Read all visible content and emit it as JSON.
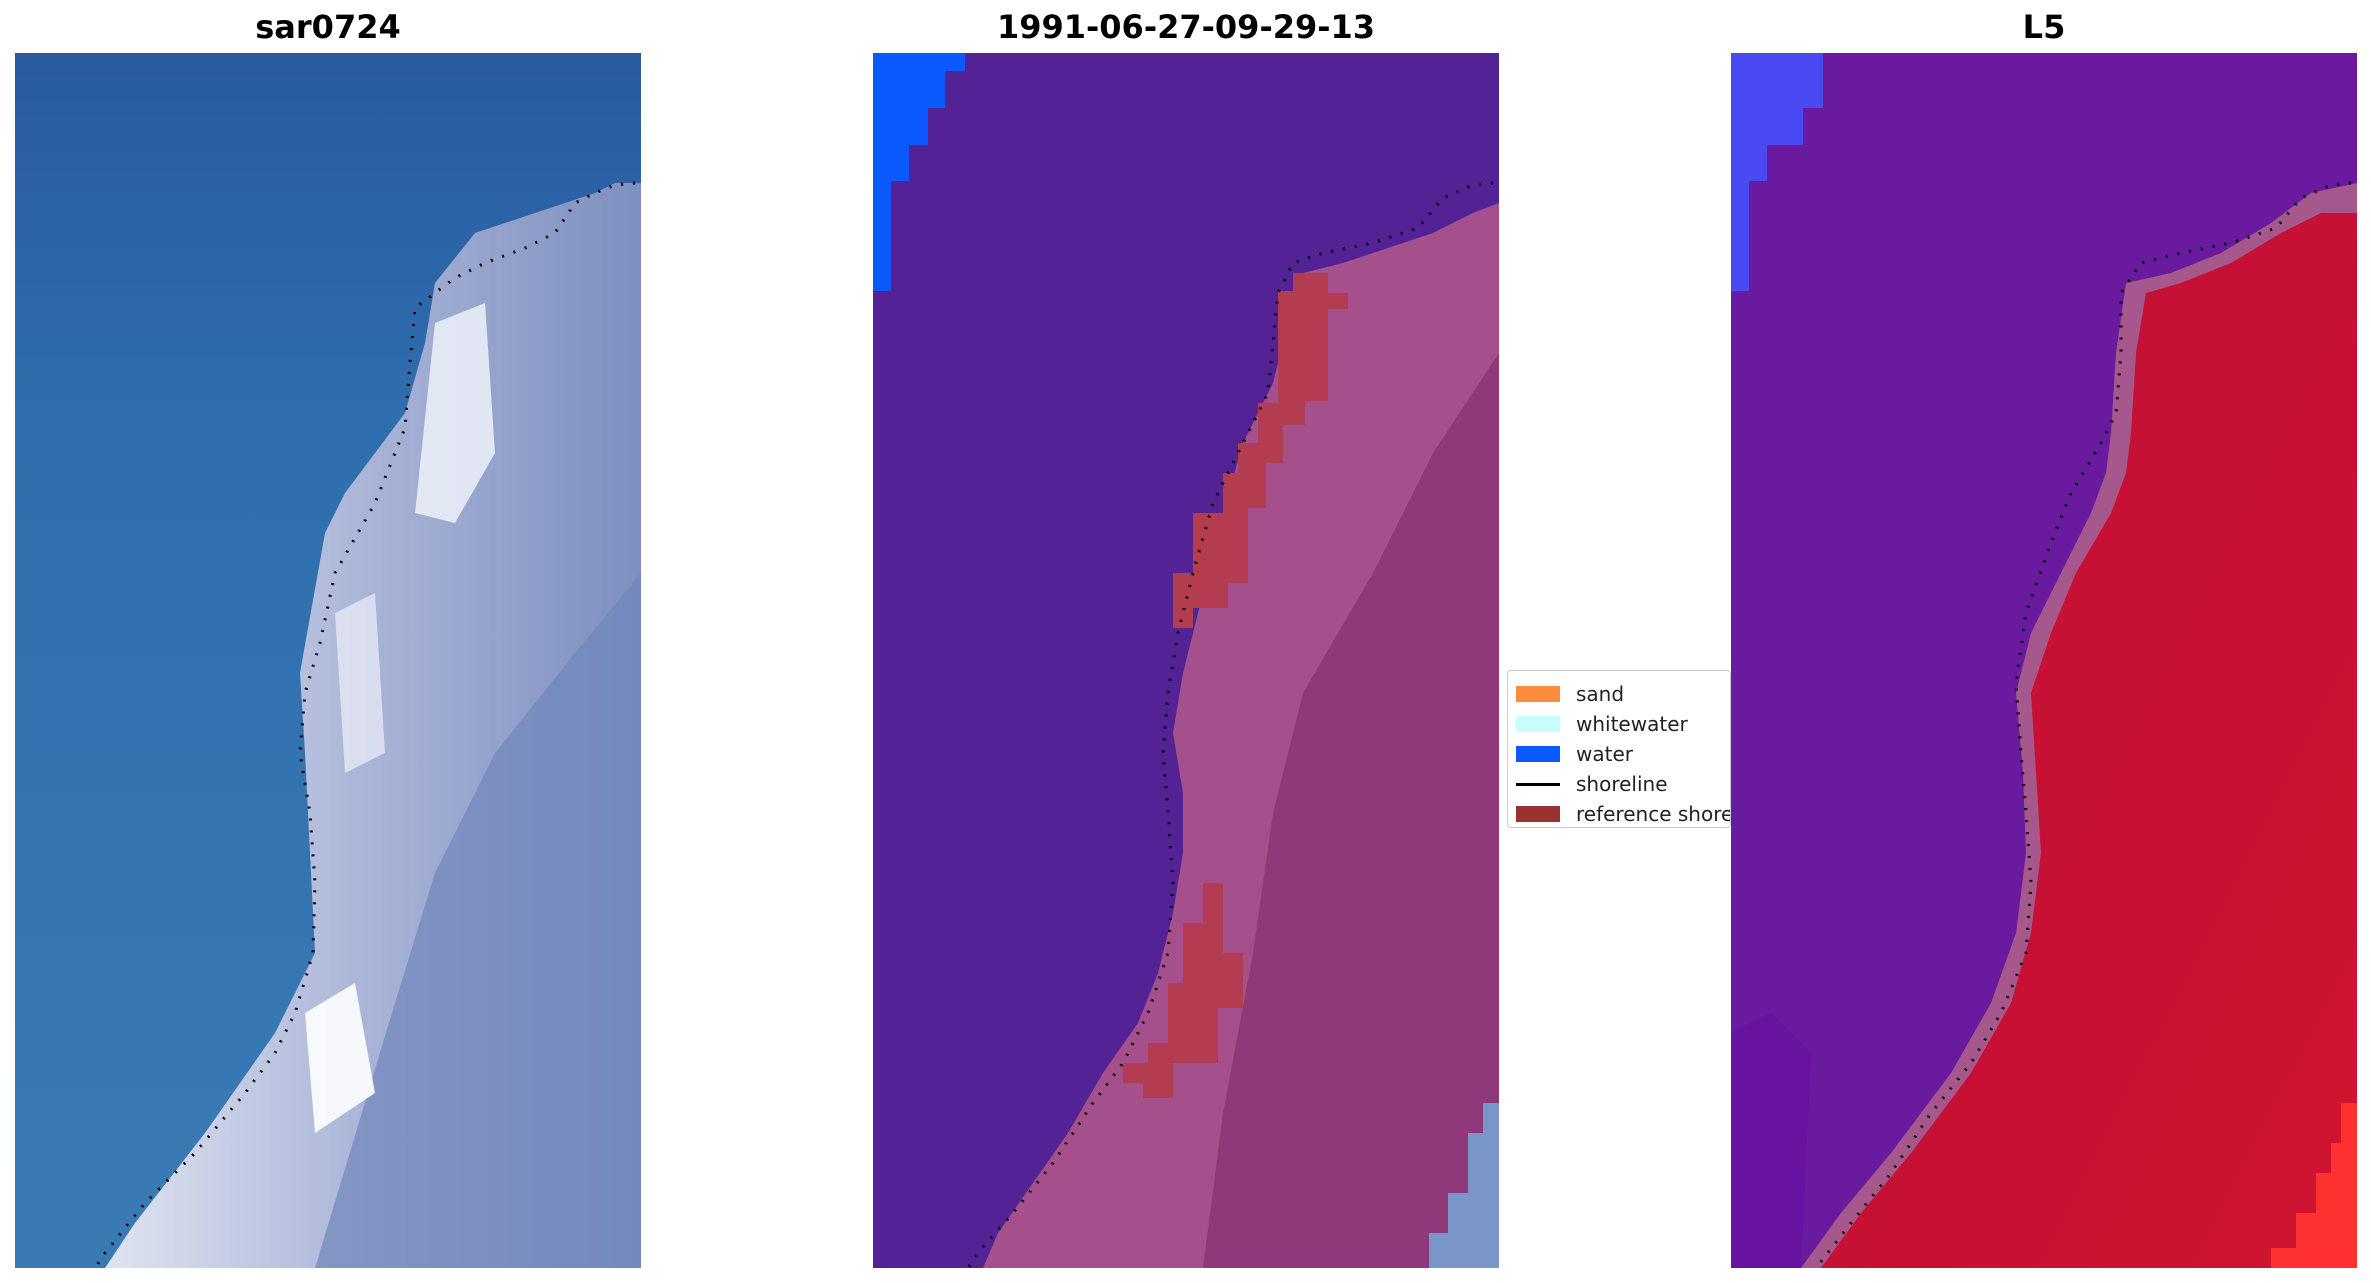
{
  "panels": [
    {
      "title": "sar0724"
    },
    {
      "title": "1991-06-27-09-29-13"
    },
    {
      "title": "L5"
    }
  ],
  "legend": {
    "items": [
      {
        "label": "sand",
        "color": "#ff8c3c",
        "kind": "patch"
      },
      {
        "label": "whitewater",
        "color": "#c8ffff",
        "kind": "patch"
      },
      {
        "label": "water",
        "color": "#0a5aff",
        "kind": "patch"
      },
      {
        "label": "shoreline",
        "color": "#000000",
        "kind": "line"
      },
      {
        "label": "reference shore",
        "color": "#9b3232",
        "kind": "patch"
      }
    ]
  }
}
